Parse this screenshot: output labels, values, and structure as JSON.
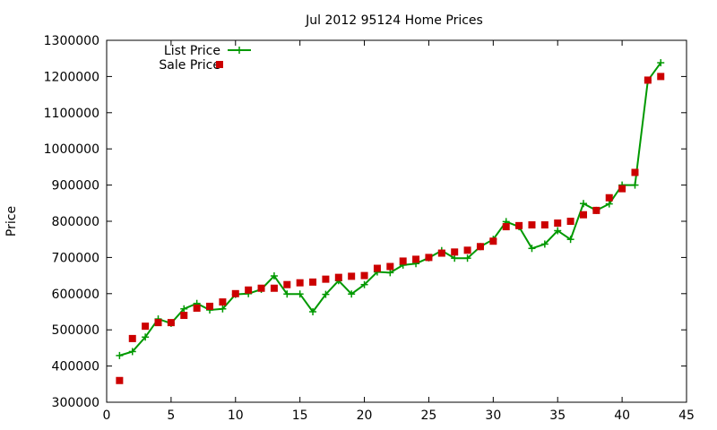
{
  "chart_data": {
    "type": "line",
    "title": "Jul 2012 95124 Home Prices",
    "xlabel": "",
    "ylabel": "Price",
    "xlim": [
      0,
      45
    ],
    "ylim": [
      300000,
      1300000
    ],
    "x_ticks": [
      0,
      5,
      10,
      15,
      20,
      25,
      30,
      35,
      40,
      45
    ],
    "y_ticks": [
      300000,
      400000,
      500000,
      600000,
      700000,
      800000,
      900000,
      1000000,
      1100000,
      1200000,
      1300000
    ],
    "grid": false,
    "legend_position": "top-left",
    "series": [
      {
        "name": "List Price",
        "style": "line+plus",
        "color": "#009900",
        "x": [
          1,
          2,
          3,
          4,
          5,
          6,
          7,
          8,
          9,
          10,
          11,
          12,
          13,
          14,
          15,
          16,
          17,
          18,
          19,
          20,
          21,
          22,
          23,
          24,
          25,
          26,
          27,
          28,
          29,
          30,
          31,
          32,
          33,
          34,
          35,
          36,
          37,
          38,
          39,
          40,
          41,
          42,
          43
        ],
        "y": [
          429000,
          440000,
          480000,
          530000,
          518000,
          558000,
          573000,
          555000,
          558000,
          598000,
          600000,
          612000,
          649000,
          599000,
          599000,
          550000,
          598000,
          636000,
          599000,
          625000,
          660000,
          658000,
          679000,
          683000,
          699000,
          719000,
          698000,
          698000,
          730000,
          750000,
          799000,
          785000,
          725000,
          737000,
          774000,
          750000,
          849000,
          830000,
          848000,
          900000,
          900000,
          1189000,
          1238000
        ]
      },
      {
        "name": "Sale Price",
        "style": "square",
        "color": "#cc0000",
        "x": [
          1,
          2,
          3,
          4,
          5,
          6,
          7,
          8,
          9,
          10,
          11,
          12,
          13,
          14,
          15,
          16,
          17,
          18,
          19,
          20,
          21,
          22,
          23,
          24,
          25,
          26,
          27,
          28,
          29,
          30,
          31,
          32,
          33,
          34,
          35,
          36,
          37,
          38,
          39,
          40,
          41,
          42,
          43
        ],
        "y": [
          360000,
          476000,
          510000,
          520000,
          520000,
          540000,
          560000,
          565000,
          577000,
          600000,
          610000,
          615000,
          615000,
          625000,
          630000,
          632000,
          640000,
          645000,
          648000,
          650000,
          670000,
          675000,
          690000,
          695000,
          700000,
          712000,
          715000,
          720000,
          730000,
          745000,
          785000,
          788000,
          790000,
          790000,
          795000,
          800000,
          818000,
          830000,
          865000,
          890000,
          935000,
          1190000,
          1200000
        ]
      }
    ]
  }
}
